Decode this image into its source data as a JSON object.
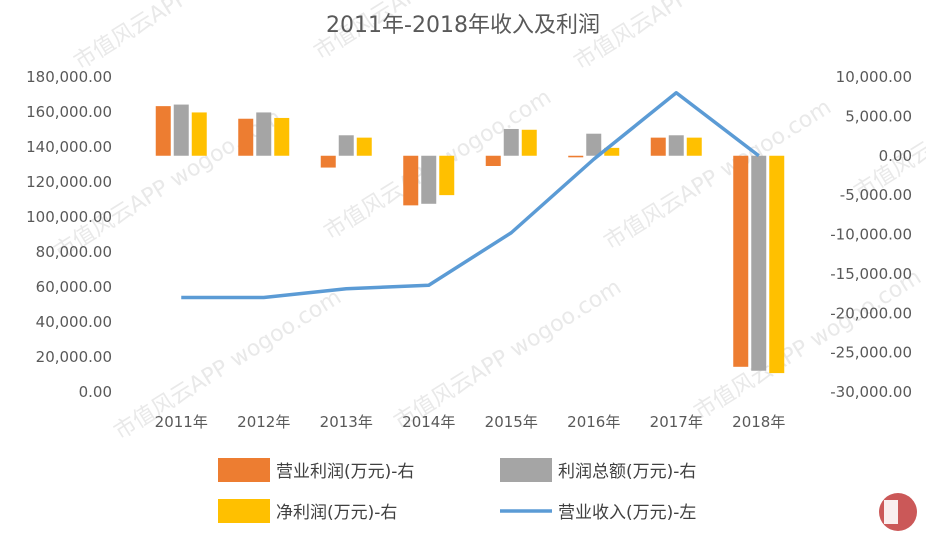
{
  "chart_data": {
    "type": "bar",
    "title": "2011年-2018年收入及利润",
    "categories": [
      "2011年",
      "2012年",
      "2013年",
      "2014年",
      "2015年",
      "2016年",
      "2017年",
      "2018年"
    ],
    "left_axis": {
      "ylim": [
        0,
        180000
      ],
      "ticks": [
        "0.00",
        "20,000.00",
        "40,000.00",
        "60,000.00",
        "80,000.00",
        "100,000.00",
        "120,000.00",
        "140,000.00",
        "160,000.00",
        "180,000.00"
      ]
    },
    "right_axis": {
      "ylim": [
        -30000,
        10000
      ],
      "ticks": [
        "-30,000.00",
        "-25,000.00",
        "-20,000.00",
        "-15,000.00",
        "-10,000.00",
        "-5,000.00",
        "0.00",
        "5,000.00",
        "10,000.00"
      ]
    },
    "series": [
      {
        "name": "营业利润(万元)-右",
        "type": "bar",
        "axis": "right",
        "color": "#ED7D31",
        "values": [
          6300,
          4700,
          -1500,
          -6300,
          -1300,
          -200,
          2300,
          -26800
        ]
      },
      {
        "name": "利润总额(万元)-右",
        "type": "bar",
        "axis": "right",
        "color": "#A5A5A5",
        "values": [
          6500,
          5500,
          2600,
          -6100,
          3400,
          2800,
          2600,
          -27300
        ]
      },
      {
        "name": "净利润(万元)-右",
        "type": "bar",
        "axis": "right",
        "color": "#FFC000",
        "values": [
          5500,
          4800,
          2300,
          -5000,
          3300,
          1000,
          2300,
          -27600
        ]
      },
      {
        "name": "营业收入(万元)-左",
        "type": "line",
        "axis": "left",
        "color": "#5B9BD5",
        "values": [
          54000,
          54000,
          59000,
          61000,
          91000,
          133000,
          171000,
          135000
        ]
      }
    ],
    "legend": {
      "placement": "bottom"
    },
    "grid": false
  },
  "watermark": "市值风云APP  wogoo.com"
}
